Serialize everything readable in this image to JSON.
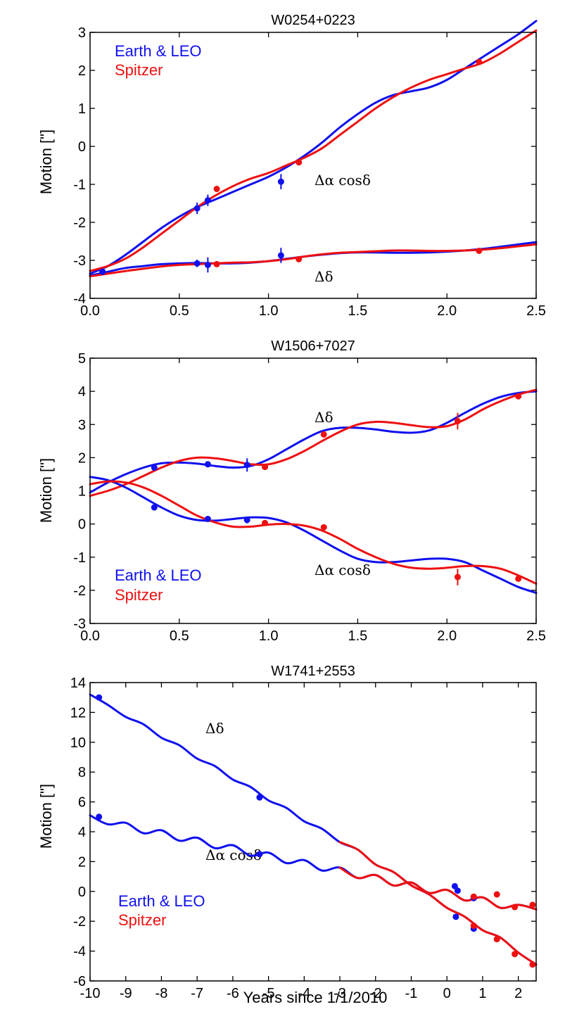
{
  "colors": {
    "earth": "#1010ee",
    "spitzer": "#ee1010",
    "axis": "#000000"
  },
  "chart_data": [
    {
      "type": "line",
      "title": "W0254+0223",
      "xlabel": "",
      "ylabel": "Motion [\"]",
      "xlim": [
        0,
        2.5
      ],
      "ylim": [
        -4,
        3
      ],
      "xticks": [
        "0.0",
        "0.5",
        "1.0",
        "1.5",
        "2.0",
        "2.5"
      ],
      "yticks": [
        "-4",
        "-3",
        "-2",
        "-1",
        "0",
        "1",
        "2",
        "3"
      ],
      "legend": {
        "position": "top-left",
        "entries": [
          "Earth & LEO",
          "Spitzer"
        ]
      },
      "annotations": [
        "Δα cosδ",
        "Δδ"
      ],
      "series": [
        {
          "name": "Earth & LEO Δα cosδ fit",
          "color": "earth",
          "x": [
            0,
            0.1,
            0.2,
            0.3,
            0.4,
            0.5,
            0.6,
            0.7,
            0.8,
            0.9,
            1.0,
            1.1,
            1.2,
            1.3,
            1.4,
            1.5,
            1.6,
            1.7,
            1.8,
            1.9,
            2.0,
            2.1,
            2.2,
            2.3,
            2.4,
            2.5
          ],
          "y": [
            -3.35,
            -3.15,
            -2.85,
            -2.5,
            -2.15,
            -1.85,
            -1.6,
            -1.4,
            -1.2,
            -1.0,
            -0.8,
            -0.55,
            -0.25,
            0.1,
            0.5,
            0.85,
            1.15,
            1.35,
            1.45,
            1.55,
            1.75,
            2.05,
            2.35,
            2.65,
            2.95,
            3.3
          ]
        },
        {
          "name": "Spitzer Δα cosδ fit",
          "color": "spitzer",
          "x": [
            0,
            0.1,
            0.2,
            0.3,
            0.4,
            0.5,
            0.6,
            0.7,
            0.8,
            0.9,
            1.0,
            1.1,
            1.2,
            1.3,
            1.4,
            1.5,
            1.6,
            1.7,
            1.8,
            1.9,
            2.0,
            2.1,
            2.2,
            2.3,
            2.4,
            2.5
          ],
          "y": [
            -3.28,
            -3.15,
            -2.95,
            -2.65,
            -2.3,
            -1.95,
            -1.6,
            -1.3,
            -1.05,
            -0.85,
            -0.7,
            -0.5,
            -0.3,
            -0.05,
            0.3,
            0.65,
            1.0,
            1.3,
            1.55,
            1.75,
            1.9,
            2.05,
            2.2,
            2.45,
            2.75,
            3.05
          ]
        },
        {
          "name": "Earth & LEO Δδ fit",
          "color": "earth",
          "x": [
            0,
            0.1,
            0.2,
            0.3,
            0.4,
            0.5,
            0.6,
            0.7,
            0.8,
            0.9,
            1.0,
            1.1,
            1.2,
            1.3,
            1.4,
            1.5,
            1.6,
            1.7,
            1.8,
            1.9,
            2.0,
            2.1,
            2.2,
            2.3,
            2.4,
            2.5
          ],
          "y": [
            -3.4,
            -3.3,
            -3.2,
            -3.15,
            -3.1,
            -3.08,
            -3.07,
            -3.08,
            -3.08,
            -3.06,
            -3.02,
            -2.96,
            -2.9,
            -2.85,
            -2.81,
            -2.79,
            -2.79,
            -2.8,
            -2.8,
            -2.79,
            -2.77,
            -2.74,
            -2.7,
            -2.64,
            -2.58,
            -2.52
          ]
        },
        {
          "name": "Spitzer Δδ fit",
          "color": "spitzer",
          "x": [
            0,
            0.1,
            0.2,
            0.3,
            0.4,
            0.5,
            0.6,
            0.7,
            0.8,
            0.9,
            1.0,
            1.1,
            1.2,
            1.3,
            1.4,
            1.5,
            1.6,
            1.7,
            1.8,
            1.9,
            2.0,
            2.1,
            2.2,
            2.3,
            2.4,
            2.5
          ],
          "y": [
            -3.42,
            -3.35,
            -3.28,
            -3.22,
            -3.16,
            -3.12,
            -3.1,
            -3.08,
            -3.06,
            -3.05,
            -3.02,
            -2.97,
            -2.9,
            -2.84,
            -2.8,
            -2.78,
            -2.76,
            -2.74,
            -2.74,
            -2.75,
            -2.75,
            -2.74,
            -2.72,
            -2.68,
            -2.63,
            -2.58
          ]
        }
      ],
      "points": [
        {
          "color": "earth",
          "x": 0.07,
          "y": -3.3,
          "err": 0.08
        },
        {
          "color": "earth",
          "x": 0.6,
          "y": -1.63,
          "err": 0.15
        },
        {
          "color": "earth",
          "x": 0.66,
          "y": -1.42,
          "err": 0.15
        },
        {
          "color": "earth",
          "x": 1.07,
          "y": -0.93,
          "err": 0.2
        },
        {
          "color": "spitzer",
          "x": 0.71,
          "y": -1.12,
          "err": 0.06
        },
        {
          "color": "spitzer",
          "x": 1.17,
          "y": -0.42,
          "err": 0.05
        },
        {
          "color": "spitzer",
          "x": 2.18,
          "y": 2.22,
          "err": 0.05
        },
        {
          "color": "earth",
          "x": 0.07,
          "y": -3.3,
          "err": 0.08
        },
        {
          "color": "earth",
          "x": 0.6,
          "y": -3.08,
          "err": 0.1
        },
        {
          "color": "earth",
          "x": 0.66,
          "y": -3.12,
          "err": 0.2
        },
        {
          "color": "earth",
          "x": 1.07,
          "y": -2.87,
          "err": 0.2
        },
        {
          "color": "spitzer",
          "x": 0.71,
          "y": -3.1,
          "err": 0.05
        },
        {
          "color": "spitzer",
          "x": 1.17,
          "y": -2.97,
          "err": 0.05
        },
        {
          "color": "spitzer",
          "x": 2.18,
          "y": -2.75,
          "err": 0.05
        }
      ]
    },
    {
      "type": "line",
      "title": "W1506+7027",
      "xlabel": "",
      "ylabel": "Motion [\"]",
      "xlim": [
        0,
        2.5
      ],
      "ylim": [
        -3,
        5
      ],
      "xticks": [
        "0.0",
        "0.5",
        "1.0",
        "1.5",
        "2.0",
        "2.5"
      ],
      "yticks": [
        "-3",
        "-2",
        "-1",
        "0",
        "1",
        "2",
        "3",
        "4",
        "5"
      ],
      "legend": {
        "position": "bottom-left",
        "entries": [
          "Earth & LEO",
          "Spitzer"
        ]
      },
      "annotations": [
        "Δδ",
        "Δα cosδ"
      ],
      "series": [
        {
          "name": "Earth & LEO Δδ fit",
          "color": "earth",
          "x": [
            0,
            0.1,
            0.2,
            0.3,
            0.4,
            0.5,
            0.6,
            0.7,
            0.8,
            0.9,
            1.0,
            1.1,
            1.2,
            1.3,
            1.4,
            1.5,
            1.6,
            1.7,
            1.8,
            1.9,
            2.0,
            2.1,
            2.2,
            2.3,
            2.4,
            2.5
          ],
          "y": [
            0.95,
            1.25,
            1.5,
            1.7,
            1.83,
            1.85,
            1.82,
            1.75,
            1.7,
            1.75,
            1.95,
            2.25,
            2.55,
            2.8,
            2.9,
            2.9,
            2.85,
            2.78,
            2.75,
            2.82,
            3.05,
            3.35,
            3.62,
            3.83,
            3.95,
            4.0
          ]
        },
        {
          "name": "Spitzer Δδ fit",
          "color": "spitzer",
          "x": [
            0,
            0.1,
            0.2,
            0.3,
            0.4,
            0.5,
            0.6,
            0.7,
            0.8,
            0.9,
            1.0,
            1.1,
            1.2,
            1.3,
            1.4,
            1.5,
            1.6,
            1.7,
            1.8,
            1.9,
            2.0,
            2.1,
            2.2,
            2.3,
            2.4,
            2.5
          ],
          "y": [
            0.85,
            1.0,
            1.2,
            1.45,
            1.7,
            1.9,
            2.0,
            1.98,
            1.9,
            1.8,
            1.8,
            1.95,
            2.2,
            2.5,
            2.78,
            3.0,
            3.08,
            3.05,
            2.98,
            2.92,
            2.95,
            3.15,
            3.45,
            3.7,
            3.9,
            4.05
          ]
        },
        {
          "name": "Earth & LEO Δα cosδ fit",
          "color": "earth",
          "x": [
            0,
            0.1,
            0.2,
            0.3,
            0.4,
            0.5,
            0.6,
            0.7,
            0.8,
            0.9,
            1.0,
            1.1,
            1.2,
            1.3,
            1.4,
            1.5,
            1.6,
            1.7,
            1.8,
            1.9,
            2.0,
            2.1,
            2.2,
            2.3,
            2.4,
            2.5
          ],
          "y": [
            1.42,
            1.32,
            1.1,
            0.8,
            0.5,
            0.25,
            0.12,
            0.1,
            0.15,
            0.2,
            0.18,
            0.05,
            -0.2,
            -0.5,
            -0.8,
            -1.05,
            -1.15,
            -1.15,
            -1.1,
            -1.05,
            -1.05,
            -1.15,
            -1.4,
            -1.65,
            -1.9,
            -2.08
          ]
        },
        {
          "name": "Spitzer Δα cosδ fit",
          "color": "spitzer",
          "x": [
            0,
            0.1,
            0.2,
            0.3,
            0.4,
            0.5,
            0.6,
            0.7,
            0.8,
            0.9,
            1.0,
            1.1,
            1.2,
            1.3,
            1.4,
            1.5,
            1.6,
            1.7,
            1.8,
            1.9,
            2.0,
            2.1,
            2.2,
            2.3,
            2.4,
            2.5
          ],
          "y": [
            1.2,
            1.28,
            1.25,
            1.1,
            0.85,
            0.55,
            0.25,
            0.05,
            -0.08,
            -0.08,
            -0.02,
            0.0,
            -0.05,
            -0.2,
            -0.45,
            -0.75,
            -1.0,
            -1.2,
            -1.32,
            -1.35,
            -1.32,
            -1.27,
            -1.27,
            -1.35,
            -1.55,
            -1.8
          ]
        }
      ],
      "points": [
        {
          "color": "earth",
          "x": 0.36,
          "y": 1.7,
          "err": 0.05
        },
        {
          "color": "earth",
          "x": 0.66,
          "y": 1.8,
          "err": 0.05
        },
        {
          "color": "earth",
          "x": 0.88,
          "y": 1.78,
          "err": 0.2
        },
        {
          "color": "spitzer",
          "x": 0.98,
          "y": 1.72,
          "err": 0.05
        },
        {
          "color": "spitzer",
          "x": 1.31,
          "y": 2.7,
          "err": 0.05
        },
        {
          "color": "spitzer",
          "x": 2.06,
          "y": 3.1,
          "err": 0.25
        },
        {
          "color": "spitzer",
          "x": 2.4,
          "y": 3.85,
          "err": 0.05
        },
        {
          "color": "earth",
          "x": 0.36,
          "y": 0.5,
          "err": 0.05
        },
        {
          "color": "earth",
          "x": 0.66,
          "y": 0.15,
          "err": 0.05
        },
        {
          "color": "earth",
          "x": 0.88,
          "y": 0.12,
          "err": 0.1
        },
        {
          "color": "spitzer",
          "x": 0.98,
          "y": 0.03,
          "err": 0.05
        },
        {
          "color": "spitzer",
          "x": 1.31,
          "y": -0.1,
          "err": 0.05
        },
        {
          "color": "spitzer",
          "x": 2.06,
          "y": -1.6,
          "err": 0.25
        },
        {
          "color": "spitzer",
          "x": 2.4,
          "y": -1.65,
          "err": 0.05
        }
      ]
    },
    {
      "type": "line",
      "title": "W1741+2553",
      "xlabel": "Years since 1/1/2010",
      "ylabel": "Motion [\"]",
      "xlim": [
        -10,
        2.5
      ],
      "ylim": [
        -6,
        14
      ],
      "xticks": [
        "-10",
        "-9",
        "-8",
        "-7",
        "-6",
        "-5",
        "-4",
        "-3",
        "-2",
        "-1",
        "0",
        "1",
        "2"
      ],
      "yticks": [
        "-6",
        "-4",
        "-2",
        "0",
        "2",
        "4",
        "6",
        "8",
        "10",
        "12",
        "14"
      ],
      "legend": {
        "position": "bottom-left",
        "entries": [
          "Earth & LEO",
          "Spitzer"
        ]
      },
      "annotations": [
        "Δδ",
        "Δα cosδ"
      ],
      "series": [
        {
          "name": "Earth & LEO Δδ fit",
          "color": "earth",
          "x": [
            -10.0,
            -9.5,
            -9.0,
            -8.5,
            -8.0,
            -7.5,
            -7.0,
            -6.5,
            -6.0,
            -5.5,
            -5.0,
            -4.5,
            -4.0,
            -3.5,
            -3.0,
            -2.5,
            -2.0,
            -1.5,
            -1.0,
            -0.5,
            0.0,
            0.5,
            1.0,
            1.5,
            2.0,
            2.5
          ],
          "y": [
            13.2,
            12.5,
            11.7,
            11.2,
            10.3,
            9.8,
            8.9,
            8.4,
            7.5,
            7.0,
            6.1,
            5.6,
            4.7,
            4.2,
            3.3,
            2.8,
            1.8,
            1.3,
            0.4,
            -0.2,
            -1.1,
            -1.7,
            -2.6,
            -3.1,
            -4.1,
            -4.9
          ]
        },
        {
          "name": "Spitzer Δδ fit",
          "color": "spitzer",
          "x": [
            -3.0,
            -2.5,
            -2.0,
            -1.5,
            -1.0,
            -0.5,
            0.0,
            0.5,
            1.0,
            1.5,
            2.0,
            2.5
          ],
          "y": [
            3.3,
            2.8,
            1.8,
            1.3,
            0.4,
            -0.2,
            -1.1,
            -1.7,
            -2.6,
            -3.1,
            -4.1,
            -4.9
          ]
        },
        {
          "name": "Earth & LEO Δα cosδ fit",
          "color": "earth",
          "x": [
            -10.0,
            -9.5,
            -9.0,
            -8.5,
            -8.0,
            -7.5,
            -7.0,
            -6.5,
            -6.0,
            -5.5,
            -5.0,
            -4.5,
            -4.0,
            -3.5,
            -3.0,
            -2.5,
            -2.0,
            -1.5,
            -1.0,
            -0.5,
            0.0,
            0.5,
            1.0,
            1.5,
            2.0,
            2.5
          ],
          "y": [
            5.1,
            4.5,
            4.6,
            3.9,
            4.1,
            3.4,
            3.6,
            2.9,
            3.1,
            2.4,
            2.6,
            1.9,
            2.1,
            1.4,
            1.6,
            0.9,
            1.1,
            0.4,
            0.6,
            -0.1,
            0.1,
            -0.6,
            -0.4,
            -1.1,
            -0.9,
            -1.2
          ]
        },
        {
          "name": "Spitzer Δα cosδ fit",
          "color": "spitzer",
          "x": [
            -3.0,
            -2.5,
            -2.0,
            -1.5,
            -1.0,
            -0.5,
            0.0,
            0.5,
            1.0,
            1.5,
            2.0,
            2.5
          ],
          "y": [
            1.6,
            0.9,
            1.1,
            0.4,
            0.6,
            -0.1,
            0.1,
            -0.6,
            -0.4,
            -1.1,
            -0.9,
            -1.2
          ]
        }
      ],
      "points": [
        {
          "color": "earth",
          "x": -9.75,
          "y": 13.0,
          "err": 0.1
        },
        {
          "color": "earth",
          "x": -5.25,
          "y": 6.3,
          "err": 0.1
        },
        {
          "color": "earth",
          "x": 0.25,
          "y": -1.7,
          "err": 0.1
        },
        {
          "color": "earth",
          "x": 0.75,
          "y": -2.5,
          "err": 0.1
        },
        {
          "color": "spitzer",
          "x": 0.75,
          "y": -2.3,
          "err": 0.1
        },
        {
          "color": "spitzer",
          "x": 1.4,
          "y": -3.2,
          "err": 0.1
        },
        {
          "color": "spitzer",
          "x": 1.9,
          "y": -4.2,
          "err": 0.1
        },
        {
          "color": "spitzer",
          "x": 2.4,
          "y": -4.9,
          "err": 0.1
        },
        {
          "color": "earth",
          "x": -9.75,
          "y": 5.0,
          "err": 0.1
        },
        {
          "color": "earth",
          "x": -5.25,
          "y": 2.5,
          "err": 0.1
        },
        {
          "color": "earth",
          "x": 0.22,
          "y": 0.35,
          "err": 0.15
        },
        {
          "color": "earth",
          "x": 0.3,
          "y": 0.05,
          "err": 0.1
        },
        {
          "color": "earth",
          "x": 0.75,
          "y": -0.45,
          "err": 0.1
        },
        {
          "color": "spitzer",
          "x": 0.75,
          "y": -0.35,
          "err": 0.1
        },
        {
          "color": "spitzer",
          "x": 1.4,
          "y": -0.2,
          "err": 0.1
        },
        {
          "color": "spitzer",
          "x": 1.9,
          "y": -1.05,
          "err": 0.1
        },
        {
          "color": "spitzer",
          "x": 2.4,
          "y": -0.9,
          "err": 0.1
        }
      ]
    }
  ]
}
